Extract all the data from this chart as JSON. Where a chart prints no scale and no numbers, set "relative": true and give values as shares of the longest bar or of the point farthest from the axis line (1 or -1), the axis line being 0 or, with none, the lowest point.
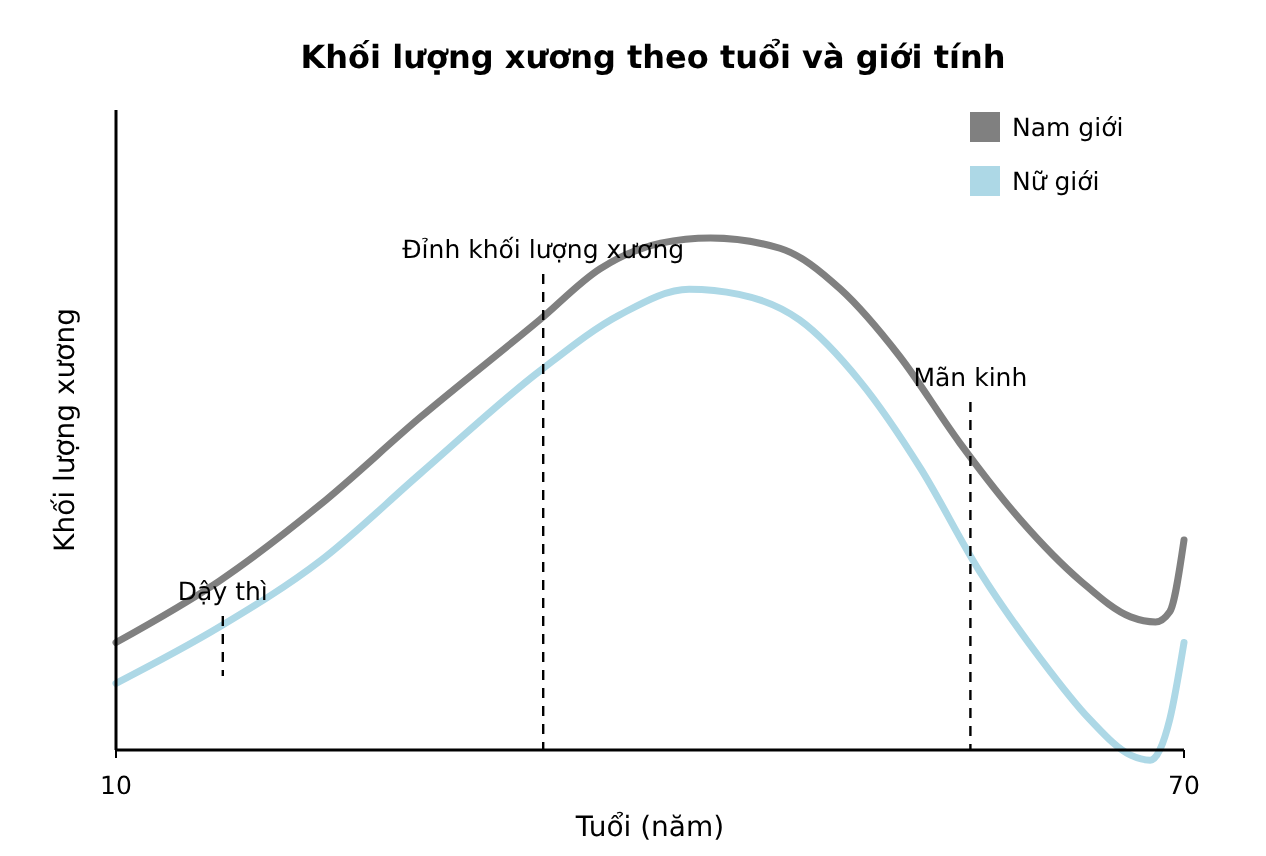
{
  "chart_data": {
    "type": "line",
    "title": "Khối lượng xương theo tuổi và giới tính",
    "xlabel": "Tuổi (năm)",
    "ylabel": "Khối lượng xương",
    "relative": true,
    "xlim": [
      10,
      70
    ],
    "xticks": [
      10,
      70
    ],
    "legend": "top right",
    "line_style": "solid",
    "series": [
      {
        "name": "Nam giới",
        "color": "#808080",
        "x": [
          10,
          15.8,
          21.5,
          27.1,
          33.8,
          37.2,
          40.6,
          43.4,
          47.3,
          50.7,
          54.0,
          57.4,
          60.8,
          64.2,
          67.0,
          68.4,
          69.2,
          70
        ],
        "values": [
          0.21,
          0.33,
          0.48,
          0.65,
          0.84,
          0.94,
          0.99,
          1.0,
          0.98,
          0.9,
          0.77,
          0.6,
          0.45,
          0.33,
          0.26,
          0.25,
          0.27,
          0.41
        ]
      },
      {
        "name": "Nữ giới",
        "color": "#add8e6",
        "x": [
          10,
          15.8,
          21.5,
          27.1,
          33.8,
          38.3,
          42.2,
          45.0,
          48.4,
          51.8,
          55.2,
          58.5,
          61.9,
          64.7,
          67.0,
          68.1,
          69.2,
          70
        ],
        "values": [
          0.13,
          0.24,
          0.37,
          0.54,
          0.74,
          0.85,
          0.9,
          0.89,
          0.84,
          0.72,
          0.55,
          0.35,
          0.18,
          0.06,
          -0.01,
          -0.02,
          0.06,
          0.21
        ]
      }
    ],
    "ref_lines": [
      {
        "axis": "x",
        "value": 16,
        "label": "Dậy thì",
        "line_style": "dashed"
      },
      {
        "axis": "x",
        "value": 34,
        "label": "Đỉnh khối lượng xương",
        "line_style": "dashed"
      },
      {
        "axis": "x",
        "value": 58,
        "label": "Mãn kinh",
        "line_style": "dashed"
      }
    ]
  }
}
